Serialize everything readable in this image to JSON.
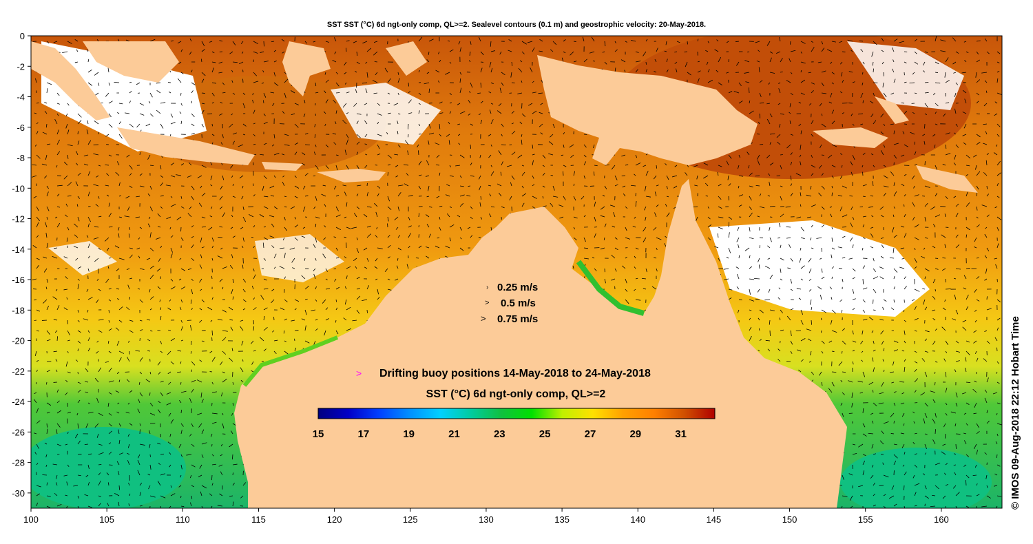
{
  "title": "SST SST (°C) 6d ngt-only comp, QL>=2. Sealevel contours (0.1 m) and geostrophic velocity: 20-May-2018.",
  "axes": {
    "x_ticks": [
      "100",
      "105",
      "110",
      "115",
      "120",
      "125",
      "130",
      "135",
      "140",
      "145",
      "150",
      "155",
      "160"
    ],
    "y_ticks": [
      "0",
      "-2",
      "-4",
      "-6",
      "-8",
      "-10",
      "-12",
      "-14",
      "-16",
      "-18",
      "-20",
      "-22",
      "-24",
      "-26",
      "-28",
      "-30"
    ]
  },
  "velocity_legend": {
    "items": [
      "0.25 m/s",
      "0.5 m/s",
      "0.75 m/s"
    ]
  },
  "buoy_legend": {
    "symbol": ">",
    "label": "Drifting buoy positions 14-May-2018 to 24-May-2018",
    "color": "#ff00ff"
  },
  "colorbar": {
    "title": "SST (°C) 6d ngt-only comp, QL>=2",
    "tick_labels": [
      "15",
      "17",
      "19",
      "21",
      "23",
      "25",
      "27",
      "29",
      "31"
    ],
    "min": 15,
    "max": 32.5,
    "colors": [
      "#00007f",
      "#0000c8",
      "#0040ff",
      "#0090ff",
      "#00d0ff",
      "#00cca0",
      "#10c040",
      "#00e000",
      "#c0f000",
      "#ffe000",
      "#ffa000",
      "#ff8000",
      "#d05000",
      "#b00000"
    ]
  },
  "credit": "© IMOS 09-Aug-2018 22:12 Hobart Time",
  "colors": {
    "land": "#fccb98",
    "no_data": "#ffffff",
    "warm_sst": "#e8860c",
    "hot_sst": "#c85a0a",
    "mid_sst": "#f2b614",
    "cool_sst": "#2cc048"
  }
}
